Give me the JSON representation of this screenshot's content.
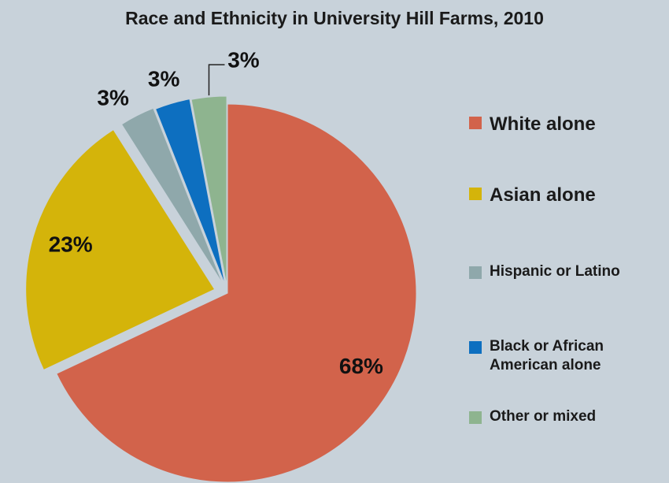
{
  "chart_data": {
    "type": "pie",
    "title": "Race and Ethnicity in University Hill Farms, 2010",
    "categories": [
      "White alone",
      "Asian alone",
      "Hispanic or Latino",
      "Black or African American alone",
      "Other or mixed"
    ],
    "values": [
      68,
      23,
      3,
      3,
      3
    ],
    "data_labels": [
      "68%",
      "23%",
      "3%",
      "3%",
      "3%"
    ],
    "colors": [
      "#d2634b",
      "#d4b40a",
      "#8fa8ab",
      "#0d6fc0",
      "#8eb48f"
    ],
    "legend": {
      "position": "right",
      "entries": [
        "White alone",
        "Asian alone",
        "Hispanic or Latino",
        "Black or African American alone",
        "Other or mixed"
      ]
    },
    "exploded": true
  }
}
